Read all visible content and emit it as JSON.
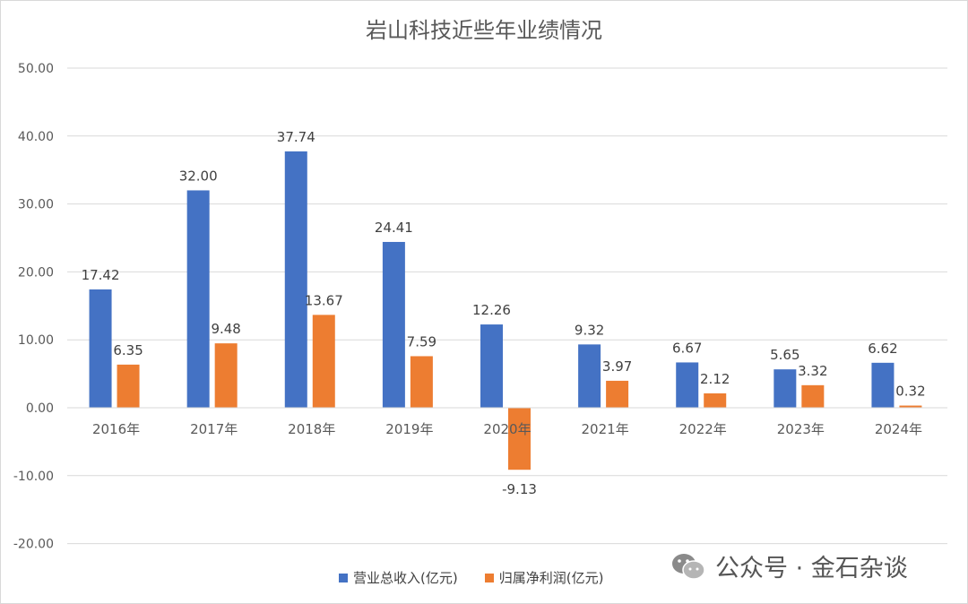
{
  "chart_data": {
    "type": "bar",
    "title": "岩山科技近些年业绩情况",
    "categories": [
      "2016年",
      "2017年",
      "2018年",
      "2019年",
      "2020年",
      "2021年",
      "2022年",
      "2023年",
      "2024年"
    ],
    "series": [
      {
        "name": "营业总收入(亿元)",
        "color": "#4472c4",
        "values": [
          17.42,
          32.0,
          37.74,
          24.41,
          12.26,
          9.32,
          6.67,
          5.65,
          6.62
        ],
        "labels": [
          "17.42",
          "32.00",
          "37.74",
          "24.41",
          "12.26",
          "9.32",
          "6.67",
          "5.65",
          "6.62"
        ]
      },
      {
        "name": "归属净利润(亿元)",
        "color": "#ed7d31",
        "values": [
          6.35,
          9.48,
          13.67,
          7.59,
          -9.13,
          3.97,
          2.12,
          3.32,
          0.32
        ],
        "labels": [
          "6.35",
          "9.48",
          "13.67",
          "7.59",
          "-9.13",
          "3.97",
          "2.12",
          "3.32",
          "0.32"
        ]
      }
    ],
    "ylim": [
      -20,
      50
    ],
    "yticks": [
      "50.00",
      "40.00",
      "30.00",
      "20.00",
      "10.00",
      "0.00",
      "-10.00",
      "-20.00"
    ],
    "ytick_values": [
      50,
      40,
      30,
      20,
      10,
      0,
      -10,
      -20
    ],
    "grid": true,
    "legend_position": "bottom"
  },
  "watermark": {
    "text": "公众号 · 金石杂谈",
    "icon": "wechat-icon"
  }
}
